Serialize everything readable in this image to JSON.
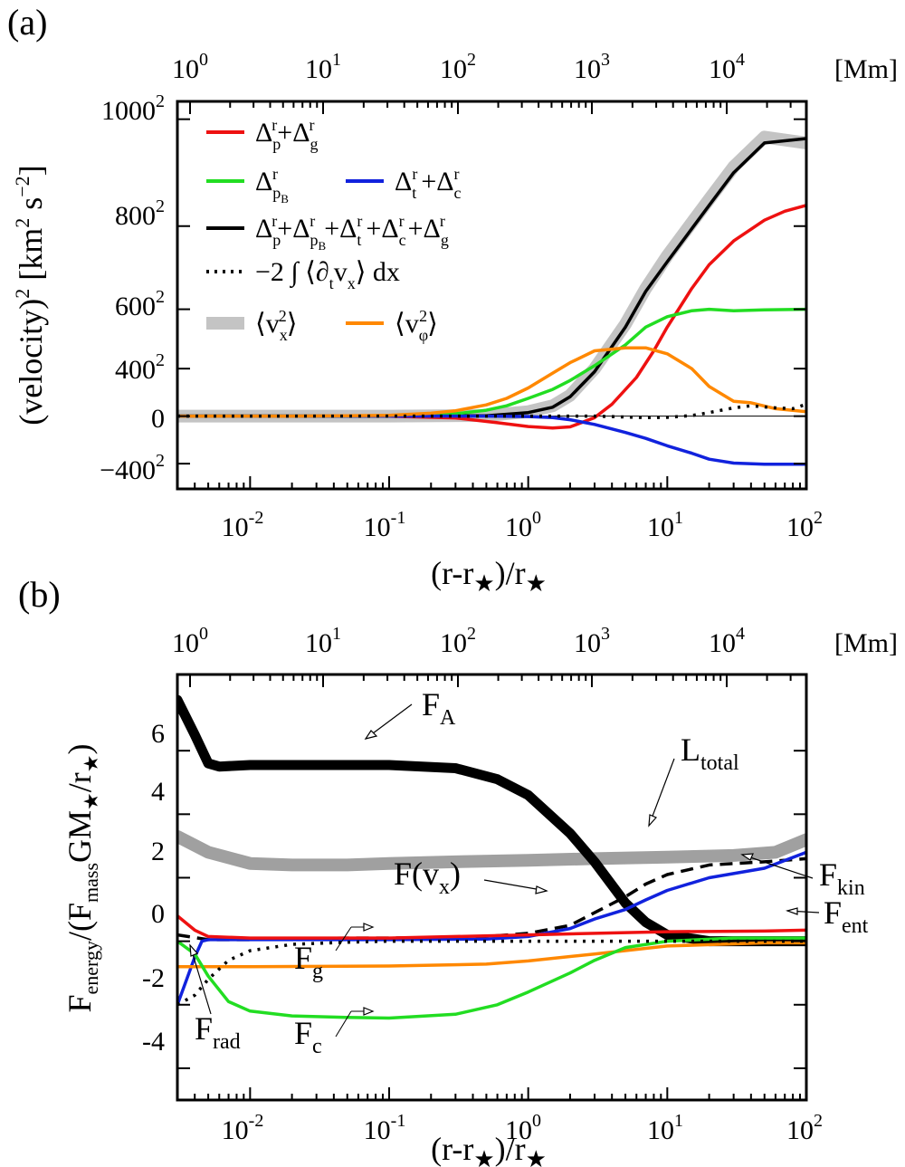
{
  "figure": {
    "panel_a_label": "(a)",
    "panel_b_label": "(b)"
  },
  "chart_data": [
    {
      "type": "line",
      "panel": "(a)",
      "title": "",
      "xscale": "log",
      "xlabel_prefix": "(r-r",
      "xlabel_star": "★",
      "xlabel_mid": ")/r",
      "xlabel_star2": "★",
      "x_ticks": [
        {
          "base": "10",
          "exp": "-2",
          "value": 0.01
        },
        {
          "base": "10",
          "exp": "-1",
          "value": 0.1
        },
        {
          "base": "10",
          "exp": "0",
          "value": 1
        },
        {
          "base": "10",
          "exp": "1",
          "value": 10
        },
        {
          "base": "10",
          "exp": "2",
          "value": 100
        }
      ],
      "top_ticks": [
        {
          "base": "10",
          "exp": "0"
        },
        {
          "base": "10",
          "exp": "1"
        },
        {
          "base": "10",
          "exp": "2"
        },
        {
          "base": "10",
          "exp": "3"
        },
        {
          "base": "10",
          "exp": "4"
        }
      ],
      "top_unit": "[Mm]",
      "ylabel_main": "(velocity)",
      "ylabel_sup": "2",
      "ylabel_unit1": " [km",
      "ylabel_unit1_sup": "2",
      "ylabel_unit2": " s",
      "ylabel_unit2_sup": "−2",
      "ylabel_close": "]",
      "y_ticks": [
        {
          "base": "1000",
          "exp": "2",
          "value": 1000000
        },
        {
          "base": "800",
          "exp": "2",
          "value": 640000
        },
        {
          "base": "600",
          "exp": "2",
          "value": 360000
        },
        {
          "base": "400",
          "exp": "2",
          "value": 160000
        },
        {
          "base": "0",
          "exp": "",
          "value": 0
        },
        {
          "base": "−400",
          "exp": "2",
          "value": -160000
        }
      ],
      "xlim": [
        0.003,
        100
      ],
      "ylim": [
        -245000,
        1060000
      ],
      "legend": [
        {
          "label": "Δ_p^r+Δ_g^r",
          "color": "#ee1111",
          "style": "solid"
        },
        {
          "label": "Δ_pB^r",
          "color": "#22dd22",
          "style": "solid"
        },
        {
          "label": "Δ_t^r+Δ_c^r",
          "color": "#1122dd",
          "style": "solid"
        },
        {
          "label": "Δ_p^r+Δ_pB^r+Δ_t^r+Δ_c^r+Δ_g^r",
          "color": "#000000",
          "style": "solid"
        },
        {
          "label": "−2 ∫ ⟨∂_t v_x⟩ dx",
          "color": "#000000",
          "style": "dotted"
        },
        {
          "label": "⟨v_x^2⟩",
          "color": "#bbbbbb",
          "style": "thick"
        },
        {
          "label": "⟨v_φ^2⟩",
          "color": "#ff8800",
          "style": "solid"
        }
      ],
      "series": [
        {
          "name": "v_x^2 (gray)",
          "color": "#c4c4c4",
          "width": 14,
          "dash": "",
          "x": [
            0.003,
            0.1,
            0.5,
            1,
            1.5,
            2,
            3,
            5,
            7,
            10,
            20,
            30,
            50,
            100
          ],
          "y": [
            0,
            0,
            2000,
            15000,
            35000,
            70000,
            160000,
            310000,
            430000,
            540000,
            730000,
            840000,
            940000,
            920000
          ]
        },
        {
          "name": "sum (black)",
          "color": "#000000",
          "width": 3.5,
          "dash": "",
          "x": [
            0.003,
            0.1,
            0.5,
            1,
            1.5,
            2,
            3,
            5,
            7,
            10,
            20,
            30,
            50,
            100
          ],
          "y": [
            0,
            0,
            1500,
            12000,
            30000,
            65000,
            150000,
            300000,
            420000,
            520000,
            710000,
            820000,
            920000,
            935000
          ]
        },
        {
          "name": "Δp+Δg (red)",
          "color": "#ee1111",
          "width": 3.5,
          "dash": "",
          "x": [
            0.003,
            0.05,
            0.1,
            0.3,
            0.6,
            1,
            1.5,
            2,
            3,
            4,
            6,
            8,
            10,
            15,
            20,
            30,
            50,
            70,
            100
          ],
          "y": [
            0,
            0,
            -500,
            -6000,
            -22000,
            -35000,
            -40000,
            -36000,
            -5000,
            40000,
            130000,
            220000,
            300000,
            430000,
            510000,
            590000,
            660000,
            690000,
            710000
          ]
        },
        {
          "name": "ΔpB (green)",
          "color": "#22dd22",
          "width": 3.5,
          "dash": "",
          "x": [
            0.003,
            0.05,
            0.1,
            0.2,
            0.3,
            0.5,
            0.7,
            1,
            1.5,
            2,
            3,
            5,
            7,
            10,
            15,
            20,
            30,
            50,
            100
          ],
          "y": [
            0,
            0,
            500,
            3000,
            8000,
            20000,
            35000,
            60000,
            90000,
            120000,
            170000,
            240000,
            300000,
            335000,
            355000,
            360000,
            355000,
            358000,
            360000
          ]
        },
        {
          "name": "Δt+Δc (blue)",
          "color": "#1122dd",
          "width": 3.5,
          "dash": "",
          "x": [
            0.003,
            0.3,
            0.5,
            1,
            1.5,
            2,
            3,
            5,
            7,
            10,
            15,
            20,
            30,
            50,
            100
          ],
          "y": [
            0,
            0,
            0,
            -1500,
            -5000,
            -12000,
            -28000,
            -55000,
            -75000,
            -100000,
            -125000,
            -145000,
            -158000,
            -162000,
            -162000
          ]
        },
        {
          "name": "v_phi^2 (orange)",
          "color": "#ff8800",
          "width": 3.5,
          "dash": "",
          "x": [
            0.003,
            0.02,
            0.05,
            0.1,
            0.2,
            0.3,
            0.5,
            0.7,
            1,
            1.5,
            2,
            3,
            5,
            7,
            10,
            15,
            20,
            30,
            40,
            60,
            100
          ],
          "y": [
            0,
            0,
            1000,
            3000,
            10000,
            18000,
            38000,
            60000,
            95000,
            145000,
            180000,
            220000,
            230000,
            230000,
            210000,
            160000,
            100000,
            50000,
            45000,
            25000,
            15000
          ]
        },
        {
          "name": "−2∫⟨∂t vx⟩dx (dotted)",
          "color": "#000000",
          "width": 3.5,
          "dash": "3,7",
          "x": [
            0.003,
            3,
            5,
            7,
            10,
            15,
            20,
            30,
            40,
            60,
            80,
            100
          ],
          "y": [
            0,
            0,
            -3000,
            -5000,
            -4000,
            2000,
            12000,
            28000,
            35000,
            28000,
            25000,
            40000
          ]
        }
      ]
    },
    {
      "type": "line",
      "panel": "(b)",
      "title": "",
      "xscale": "log",
      "xlabel_prefix": "(r-r",
      "xlabel_star": "★",
      "xlabel_mid": ")/r",
      "xlabel_star2": "★",
      "x_ticks": [
        {
          "base": "10",
          "exp": "-2",
          "value": 0.01
        },
        {
          "base": "10",
          "exp": "-1",
          "value": 0.1
        },
        {
          "base": "10",
          "exp": "0",
          "value": 1
        },
        {
          "base": "10",
          "exp": "1",
          "value": 10
        },
        {
          "base": "10",
          "exp": "2",
          "value": 100
        }
      ],
      "top_ticks": [
        {
          "base": "10",
          "exp": "0"
        },
        {
          "base": "10",
          "exp": "1"
        },
        {
          "base": "10",
          "exp": "2"
        },
        {
          "base": "10",
          "exp": "3"
        },
        {
          "base": "10",
          "exp": "4"
        }
      ],
      "top_unit": "[Mm]",
      "ylabel_f": "F",
      "ylabel_energy": "energy",
      "ylabel_open": "/(F",
      "ylabel_mass": "mass",
      "ylabel_gm": "GM",
      "ylabel_star": "★",
      "ylabel_slash": "/r",
      "ylabel_star2": "★",
      "ylabel_close": ")",
      "y_ticks": [
        {
          "label": "6",
          "value": 6
        },
        {
          "label": "4",
          "value": 4
        },
        {
          "label": "2",
          "value": 2
        },
        {
          "label": "0",
          "value": 0
        },
        {
          "label": "-2",
          "value": -2
        },
        {
          "label": "-4",
          "value": -4
        }
      ],
      "xlim": [
        0.003,
        100
      ],
      "ylim": [
        -5,
        8.4
      ],
      "annotations": [
        {
          "id": "fa",
          "main": "F",
          "sub": "A"
        },
        {
          "id": "ltotal",
          "main": "L",
          "sub": "total"
        },
        {
          "id": "fvx",
          "main": "F(v",
          "sub": "x",
          "tail": ")"
        },
        {
          "id": "fkin",
          "main": "F",
          "sub": "kin"
        },
        {
          "id": "fent",
          "main": "F",
          "sub": "ent"
        },
        {
          "id": "fg",
          "main": "F",
          "sub": "g"
        },
        {
          "id": "fc",
          "main": "F",
          "sub": "c"
        },
        {
          "id": "frad",
          "main": "F",
          "sub": "rad"
        }
      ],
      "series": [
        {
          "name": "L_total (gray)",
          "color": "#a0a0a0",
          "width": 14,
          "dash": "",
          "x": [
            0.003,
            0.005,
            0.01,
            0.02,
            0.05,
            0.1,
            0.3,
            1,
            3,
            10,
            30,
            60,
            100
          ],
          "y": [
            3.3,
            2.8,
            2.45,
            2.4,
            2.4,
            2.45,
            2.5,
            2.55,
            2.6,
            2.65,
            2.7,
            2.8,
            3.2
          ]
        },
        {
          "name": "F_A (black)",
          "color": "#000000",
          "width": 11,
          "dash": "",
          "x": [
            0.003,
            0.004,
            0.005,
            0.006,
            0.01,
            0.03,
            0.1,
            0.3,
            0.6,
            1,
            2,
            3,
            5,
            7,
            10,
            20,
            50,
            100
          ],
          "y": [
            7.6,
            6.5,
            5.6,
            5.5,
            5.55,
            5.55,
            5.55,
            5.45,
            5.1,
            4.6,
            3.4,
            2.5,
            1.2,
            0.6,
            0.2,
            0,
            0,
            0
          ]
        },
        {
          "name": "F(v_x) (dashed)",
          "color": "#000000",
          "width": 3.5,
          "dash": "14,8",
          "x": [
            0.003,
            0.005,
            0.01,
            0.05,
            0.1,
            0.3,
            0.5,
            1,
            2,
            3,
            5,
            7,
            10,
            20,
            50,
            100
          ],
          "y": [
            0.2,
            0.05,
            0.05,
            0.1,
            0.1,
            0.12,
            0.15,
            0.25,
            0.5,
            0.9,
            1.4,
            1.8,
            2.1,
            2.4,
            2.5,
            2.6
          ]
        },
        {
          "name": "F_kin (blue)",
          "color": "#1122dd",
          "width": 3.5,
          "dash": "",
          "x": [
            0.003,
            0.0035,
            0.004,
            0.0045,
            0.005,
            0.01,
            0.1,
            0.5,
            1,
            2,
            3,
            5,
            7,
            10,
            20,
            50,
            100
          ],
          "y": [
            -2,
            -1.2,
            -0.5,
            0,
            0.05,
            0.05,
            0.05,
            0.07,
            0.15,
            0.4,
            0.7,
            1,
            1.3,
            1.6,
            2,
            2.3,
            2.8
          ]
        },
        {
          "name": "F_ent (red)",
          "color": "#ee1111",
          "width": 3.5,
          "dash": "",
          "x": [
            0.003,
            0.004,
            0.005,
            0.01,
            0.1,
            1,
            10,
            50,
            100
          ],
          "y": [
            0.8,
            0.35,
            0.15,
            0.1,
            0.1,
            0.2,
            0.3,
            0.32,
            0.35
          ]
        },
        {
          "name": "F_g (orange)",
          "color": "#ff8800",
          "width": 3.5,
          "dash": "",
          "x": [
            0.003,
            0.01,
            0.1,
            0.5,
            1,
            3,
            10,
            50,
            100
          ],
          "y": [
            -0.8,
            -0.8,
            -0.78,
            -0.72,
            -0.62,
            -0.4,
            -0.15,
            -0.05,
            -0.05
          ]
        },
        {
          "name": "F_c (green)",
          "color": "#22dd22",
          "width": 3.5,
          "dash": "",
          "x": [
            0.003,
            0.004,
            0.005,
            0.007,
            0.01,
            0.02,
            0.05,
            0.1,
            0.3,
            0.6,
            1,
            2,
            3,
            5,
            10,
            30,
            100
          ],
          "y": [
            0,
            -0.4,
            -1.1,
            -1.9,
            -2.2,
            -2.35,
            -2.4,
            -2.42,
            -2.3,
            -2,
            -1.6,
            -1,
            -0.6,
            -0.2,
            0,
            0.1,
            0.1
          ]
        },
        {
          "name": "F_rad (dotted)",
          "color": "#000000",
          "width": 3.5,
          "dash": "3,7",
          "x": [
            0.003,
            0.004,
            0.005,
            0.007,
            0.01,
            0.02,
            0.05,
            0.1,
            1,
            100
          ],
          "y": [
            -2,
            -1.7,
            -1.2,
            -0.6,
            -0.3,
            -0.1,
            -0.03,
            0,
            0,
            0
          ]
        }
      ]
    }
  ]
}
